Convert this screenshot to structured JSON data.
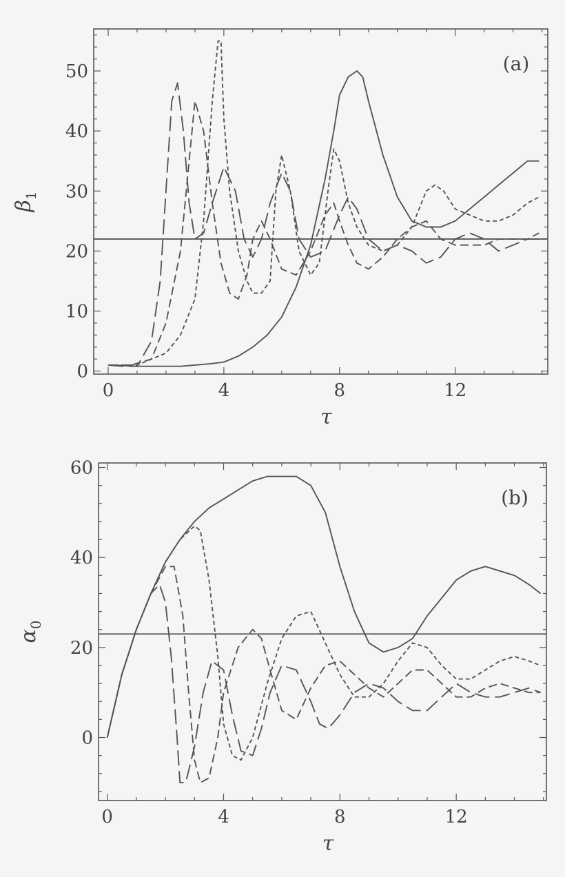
{
  "chart_data": [
    {
      "type": "line",
      "panel_label": "(a)",
      "xlabel": "τ",
      "ylabel": "β1",
      "xlim": [
        -0.5,
        15.2
      ],
      "ylim": [
        -0.5,
        57
      ],
      "xticks": [
        0,
        4,
        8,
        12
      ],
      "yticks": [
        0,
        10,
        20,
        30,
        40,
        50
      ],
      "reference_line": 22,
      "series": [
        {
          "style": "solid",
          "x": [
            0,
            1,
            2,
            2.5,
            3,
            3.5,
            4,
            4.5,
            5,
            5.5,
            6,
            6.5,
            7,
            7.5,
            7.8,
            8,
            8.3,
            8.6,
            8.8,
            9,
            9.5,
            10,
            10.5,
            11,
            11.5,
            12,
            12.5,
            13,
            13.5,
            14,
            14.5,
            14.9
          ],
          "y": [
            1,
            0.8,
            0.8,
            0.8,
            1,
            1.2,
            1.5,
            2.5,
            4,
            6,
            9,
            14,
            21,
            32,
            40,
            46,
            49,
            50,
            49,
            45,
            36,
            29,
            25,
            24,
            24,
            25,
            27,
            29,
            31,
            33,
            35,
            35
          ]
        },
        {
          "style": "short-dash",
          "x": [
            0,
            1,
            1.5,
            2,
            2.5,
            3,
            3.3,
            3.6,
            3.8,
            3.9,
            4,
            4.2,
            4.5,
            4.8,
            5,
            5.3,
            5.6,
            5.8,
            6,
            6.3,
            6.6,
            7,
            7.3,
            7.6,
            7.8,
            8,
            8.3,
            8.6,
            9,
            9.5,
            10,
            10.5,
            11,
            11.3,
            11.6,
            12,
            12.5,
            13,
            13.5,
            14,
            14.5,
            14.9
          ],
          "y": [
            1,
            1,
            2,
            3,
            6,
            12,
            25,
            45,
            55,
            55,
            42,
            30,
            20,
            15,
            13,
            13,
            15,
            30,
            36,
            30,
            20,
            16,
            18,
            30,
            37,
            35,
            28,
            24,
            21,
            20,
            21,
            24,
            30,
            31,
            30,
            27,
            26,
            25,
            25,
            26,
            28,
            29
          ]
        },
        {
          "style": "medium-dash",
          "x": [
            0,
            0.8,
            1.5,
            2,
            2.5,
            2.8,
            3,
            3.3,
            3.6,
            3.9,
            4.2,
            4.5,
            4.8,
            5,
            5.3,
            5.6,
            6,
            6.5,
            7,
            7.5,
            7.8,
            8,
            8.3,
            8.6,
            9,
            9.5,
            10,
            10.5,
            11,
            11.5,
            12,
            12.5,
            13,
            13.5,
            14,
            14.5,
            14.9
          ],
          "y": [
            1,
            1,
            2,
            8,
            20,
            35,
            45,
            40,
            28,
            18,
            13,
            12,
            16,
            22,
            25,
            22,
            17,
            16,
            20,
            26,
            28,
            25,
            21,
            18,
            17,
            19,
            22,
            24,
            25,
            22,
            21,
            21,
            21,
            22,
            22,
            22,
            23
          ]
        },
        {
          "style": "long-dash",
          "x": [
            0,
            0.5,
            1,
            1.5,
            1.8,
            2,
            2.2,
            2.4,
            2.6,
            2.8,
            3,
            3.3,
            3.6,
            4,
            4.4,
            4.7,
            5,
            5.3,
            5.6,
            6,
            6.3,
            6.6,
            7,
            7.5,
            8,
            8.3,
            8.6,
            9,
            9.5,
            10,
            10.5,
            11,
            11.5,
            12,
            12.5,
            13,
            13.5,
            14,
            14.5,
            14.9
          ],
          "y": [
            1,
            0.8,
            0.8,
            5,
            15,
            30,
            45,
            48,
            40,
            28,
            22,
            23,
            28,
            34,
            30,
            22,
            19,
            22,
            28,
            33,
            30,
            22,
            19,
            20,
            26,
            29,
            27,
            22,
            20,
            21,
            20,
            18,
            19,
            22,
            23,
            22,
            20,
            21,
            22,
            22
          ]
        }
      ]
    },
    {
      "type": "line",
      "panel_label": "(b)",
      "xlabel": "τ",
      "ylabel": "α0",
      "xlim": [
        -0.3,
        15.1
      ],
      "ylim": [
        -14,
        61
      ],
      "xticks": [
        0,
        4,
        8,
        12
      ],
      "yticks": [
        0,
        20,
        40,
        60
      ],
      "reference_line": 23,
      "series": [
        {
          "style": "solid",
          "x": [
            0,
            0.5,
            1,
            1.5,
            2,
            2.5,
            3,
            3.5,
            4,
            4.5,
            5,
            5.5,
            6,
            6.5,
            7,
            7.5,
            8,
            8.5,
            9,
            9.5,
            10,
            10.5,
            11,
            11.5,
            12,
            12.5,
            13,
            13.5,
            14,
            14.5,
            14.9
          ],
          "y": [
            0,
            14,
            24,
            32,
            39,
            44,
            48,
            51,
            53,
            55,
            57,
            58,
            58,
            58,
            56,
            50,
            38,
            28,
            21,
            19,
            20,
            22,
            27,
            31,
            35,
            37,
            38,
            37,
            36,
            34,
            32
          ]
        },
        {
          "style": "short-dash",
          "x": [
            0,
            0.5,
            1,
            1.5,
            2,
            2.5,
            3,
            3.2,
            3.5,
            3.8,
            4,
            4.3,
            4.6,
            5,
            5.5,
            6,
            6.5,
            7,
            7.5,
            8,
            8.5,
            9,
            9.5,
            10,
            10.5,
            11,
            11.5,
            12,
            12.5,
            13,
            13.5,
            14,
            14.5,
            14.9
          ],
          "y": [
            0,
            14,
            24,
            32,
            39,
            44,
            47,
            46,
            35,
            18,
            3,
            -4,
            -5,
            0,
            12,
            22,
            27,
            28,
            21,
            14,
            9,
            9,
            12,
            17,
            21,
            20,
            16,
            13,
            13,
            15,
            17,
            18,
            17,
            16
          ]
        },
        {
          "style": "medium-dash",
          "x": [
            0,
            0.5,
            1,
            1.5,
            2,
            2.3,
            2.6,
            2.8,
            3,
            3.2,
            3.5,
            3.8,
            4,
            4.5,
            5,
            5.3,
            5.6,
            6,
            6.5,
            7,
            7.5,
            8,
            8.5,
            9,
            9.5,
            10,
            10.5,
            11,
            11.5,
            12,
            12.5,
            13,
            13.5,
            14,
            14.5,
            14.9
          ],
          "y": [
            0,
            14,
            24,
            32,
            38,
            38,
            27,
            10,
            -5,
            -10,
            -9,
            0,
            10,
            20,
            24,
            22,
            15,
            6,
            4,
            11,
            16,
            17,
            14,
            11,
            9,
            12,
            15,
            15,
            12,
            9,
            9,
            11,
            12,
            11,
            10,
            10
          ]
        },
        {
          "style": "long-dash",
          "x": [
            0,
            0.5,
            1,
            1.5,
            1.8,
            2,
            2.2,
            2.4,
            2.5,
            2.7,
            3,
            3.3,
            3.6,
            4,
            4.3,
            4.6,
            5,
            5.3,
            5.6,
            6,
            6.5,
            7,
            7.3,
            7.6,
            8,
            8.5,
            9,
            9.5,
            10,
            10.5,
            11,
            11.5,
            12,
            12.5,
            13,
            13.5,
            14,
            14.5,
            14.9
          ],
          "y": [
            0,
            14,
            24,
            32,
            34,
            30,
            18,
            0,
            -10,
            -10,
            -2,
            10,
            17,
            15,
            5,
            -3,
            -4,
            2,
            10,
            16,
            15,
            8,
            3,
            2,
            5,
            10,
            12,
            11,
            8,
            6,
            6,
            9,
            12,
            10,
            9,
            9,
            10,
            11,
            10
          ]
        }
      ]
    }
  ]
}
